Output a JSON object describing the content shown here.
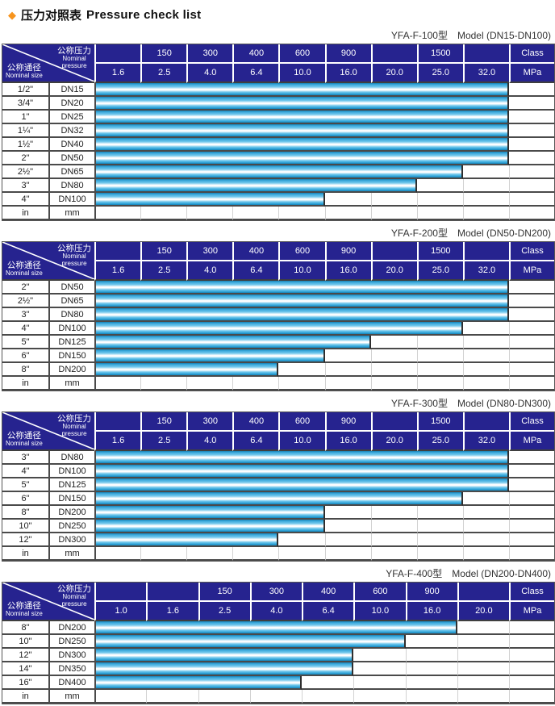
{
  "title": {
    "diamond_glyph": "◆",
    "zh": "压力对照表",
    "en": "Pressure check list"
  },
  "corner": {
    "pressure_zh": "公称压力",
    "pressure_en1": "Nominal",
    "pressure_en2": "pressure",
    "size_zh": "公称通径",
    "size_en": "Nominal size"
  },
  "colors": {
    "header_bg": "#26238f",
    "header_text": "#ffffff",
    "bar_cyan": "#3aa9dc",
    "bar_edge": "#1580b4",
    "bar_highlight": "#ffffff",
    "diamond_orange": "#f7941d",
    "grid_dark": "#4a4a4a",
    "grid_faint": "#d2d2d2"
  },
  "tables": [
    {
      "caption_model": "YFA-F-100型",
      "caption_range": "Model (DN15-DN100)",
      "class_row": [
        "",
        "150",
        "300",
        "400",
        "600",
        "900",
        "",
        "1500",
        "",
        "Class"
      ],
      "mpa_row": [
        "1.6",
        "2.5",
        "4.0",
        "6.4",
        "10.0",
        "16.0",
        "20.0",
        "25.0",
        "32.0",
        "MPa"
      ],
      "rows": [
        {
          "inch": "1/2\"",
          "dn": "DN15",
          "bars": 9
        },
        {
          "inch": "3/4\"",
          "dn": "DN20",
          "bars": 9
        },
        {
          "inch": "1\"",
          "dn": "DN25",
          "bars": 9
        },
        {
          "inch": "1¼\"",
          "dn": "DN32",
          "bars": 9
        },
        {
          "inch": "1½\"",
          "dn": "DN40",
          "bars": 9
        },
        {
          "inch": "2\"",
          "dn": "DN50",
          "bars": 9
        },
        {
          "inch": "2½\"",
          "dn": "DN65",
          "bars": 8
        },
        {
          "inch": "3\"",
          "dn": "DN80",
          "bars": 7
        },
        {
          "inch": "4\"",
          "dn": "DN100",
          "bars": 5
        },
        {
          "inch": "in",
          "dn": "mm",
          "bars": 0
        }
      ]
    },
    {
      "caption_model": "YFA-F-200型",
      "caption_range": "Model (DN50-DN200)",
      "class_row": [
        "",
        "150",
        "300",
        "400",
        "600",
        "900",
        "",
        "1500",
        "",
        "Class"
      ],
      "mpa_row": [
        "1.6",
        "2.5",
        "4.0",
        "6.4",
        "10.0",
        "16.0",
        "20.0",
        "25.0",
        "32.0",
        "MPa"
      ],
      "rows": [
        {
          "inch": "2\"",
          "dn": "DN50",
          "bars": 9
        },
        {
          "inch": "2½\"",
          "dn": "DN65",
          "bars": 9
        },
        {
          "inch": "3\"",
          "dn": "DN80",
          "bars": 9
        },
        {
          "inch": "4\"",
          "dn": "DN100",
          "bars": 8
        },
        {
          "inch": "5\"",
          "dn": "DN125",
          "bars": 6
        },
        {
          "inch": "6\"",
          "dn": "DN150",
          "bars": 5
        },
        {
          "inch": "8\"",
          "dn": "DN200",
          "bars": 4
        },
        {
          "inch": "in",
          "dn": "mm",
          "bars": 0
        }
      ]
    },
    {
      "caption_model": "YFA-F-300型",
      "caption_range": "Model (DN80-DN300)",
      "class_row": [
        "",
        "150",
        "300",
        "400",
        "600",
        "900",
        "",
        "1500",
        "",
        "Class"
      ],
      "mpa_row": [
        "1.6",
        "2.5",
        "4.0",
        "6.4",
        "10.0",
        "16.0",
        "20.0",
        "25.0",
        "32.0",
        "MPa"
      ],
      "rows": [
        {
          "inch": "3\"",
          "dn": "DN80",
          "bars": 9
        },
        {
          "inch": "4\"",
          "dn": "DN100",
          "bars": 9
        },
        {
          "inch": "5\"",
          "dn": "DN125",
          "bars": 9
        },
        {
          "inch": "6\"",
          "dn": "DN150",
          "bars": 8
        },
        {
          "inch": "8\"",
          "dn": "DN200",
          "bars": 5
        },
        {
          "inch": "10\"",
          "dn": "DN250",
          "bars": 5
        },
        {
          "inch": "12\"",
          "dn": "DN300",
          "bars": 4
        },
        {
          "inch": "in",
          "dn": "mm",
          "bars": 0
        }
      ]
    },
    {
      "caption_model": "YFA-F-400型",
      "caption_range": "Model (DN200-DN400)",
      "class_row": [
        "",
        "",
        "150",
        "300",
        "400",
        "600",
        "900",
        "",
        "Class"
      ],
      "mpa_row": [
        "1.0",
        "1.6",
        "2.5",
        "4.0",
        "6.4",
        "10.0",
        "16.0",
        "20.0",
        "MPa"
      ],
      "rows": [
        {
          "inch": "8\"",
          "dn": "DN200",
          "bars": 7
        },
        {
          "inch": "10\"",
          "dn": "DN250",
          "bars": 6
        },
        {
          "inch": "12\"",
          "dn": "DN300",
          "bars": 5
        },
        {
          "inch": "14\"",
          "dn": "DN350",
          "bars": 5
        },
        {
          "inch": "16\"",
          "dn": "DN400",
          "bars": 4
        },
        {
          "inch": "in",
          "dn": "mm",
          "bars": 0
        }
      ]
    }
  ],
  "chart_data": [
    {
      "type": "bar",
      "title": "YFA-F-100型 Model (DN15-DN100)",
      "categories": [
        "DN15",
        "DN20",
        "DN25",
        "DN32",
        "DN40",
        "DN50",
        "DN65",
        "DN80",
        "DN100"
      ],
      "values": [
        32.0,
        32.0,
        32.0,
        32.0,
        32.0,
        32.0,
        25.0,
        20.0,
        10.0
      ],
      "xlabel": "Nominal pressure",
      "ylabel": "Nominal size",
      "unit": "MPa",
      "mpa_scale": [
        1.6,
        2.5,
        4.0,
        6.4,
        10.0,
        16.0,
        20.0,
        25.0,
        32.0
      ],
      "class_scale": [
        150,
        300,
        400,
        600,
        900,
        1500
      ],
      "legend_position": "none",
      "grid": true
    },
    {
      "type": "bar",
      "title": "YFA-F-200型 Model (DN50-DN200)",
      "categories": [
        "DN50",
        "DN65",
        "DN80",
        "DN100",
        "DN125",
        "DN150",
        "DN200"
      ],
      "values": [
        32.0,
        32.0,
        32.0,
        25.0,
        16.0,
        10.0,
        6.4
      ],
      "xlabel": "Nominal pressure",
      "ylabel": "Nominal size",
      "unit": "MPa",
      "mpa_scale": [
        1.6,
        2.5,
        4.0,
        6.4,
        10.0,
        16.0,
        20.0,
        25.0,
        32.0
      ],
      "class_scale": [
        150,
        300,
        400,
        600,
        900,
        1500
      ],
      "legend_position": "none",
      "grid": true
    },
    {
      "type": "bar",
      "title": "YFA-F-300型 Model (DN80-DN300)",
      "categories": [
        "DN80",
        "DN100",
        "DN125",
        "DN150",
        "DN200",
        "DN250",
        "DN300"
      ],
      "values": [
        32.0,
        32.0,
        32.0,
        25.0,
        10.0,
        10.0,
        6.4
      ],
      "xlabel": "Nominal pressure",
      "ylabel": "Nominal size",
      "unit": "MPa",
      "mpa_scale": [
        1.6,
        2.5,
        4.0,
        6.4,
        10.0,
        16.0,
        20.0,
        25.0,
        32.0
      ],
      "class_scale": [
        150,
        300,
        400,
        600,
        900,
        1500
      ],
      "legend_position": "none",
      "grid": true
    },
    {
      "type": "bar",
      "title": "YFA-F-400型 Model (DN200-DN400)",
      "categories": [
        "DN200",
        "DN250",
        "DN300",
        "DN350",
        "DN400"
      ],
      "values": [
        16.0,
        10.0,
        6.4,
        6.4,
        4.0
      ],
      "xlabel": "Nominal pressure",
      "ylabel": "Nominal size",
      "unit": "MPa",
      "mpa_scale": [
        1.0,
        1.6,
        2.5,
        4.0,
        6.4,
        10.0,
        16.0,
        20.0
      ],
      "class_scale": [
        150,
        300,
        400,
        600,
        900
      ],
      "legend_position": "none",
      "grid": true
    }
  ]
}
